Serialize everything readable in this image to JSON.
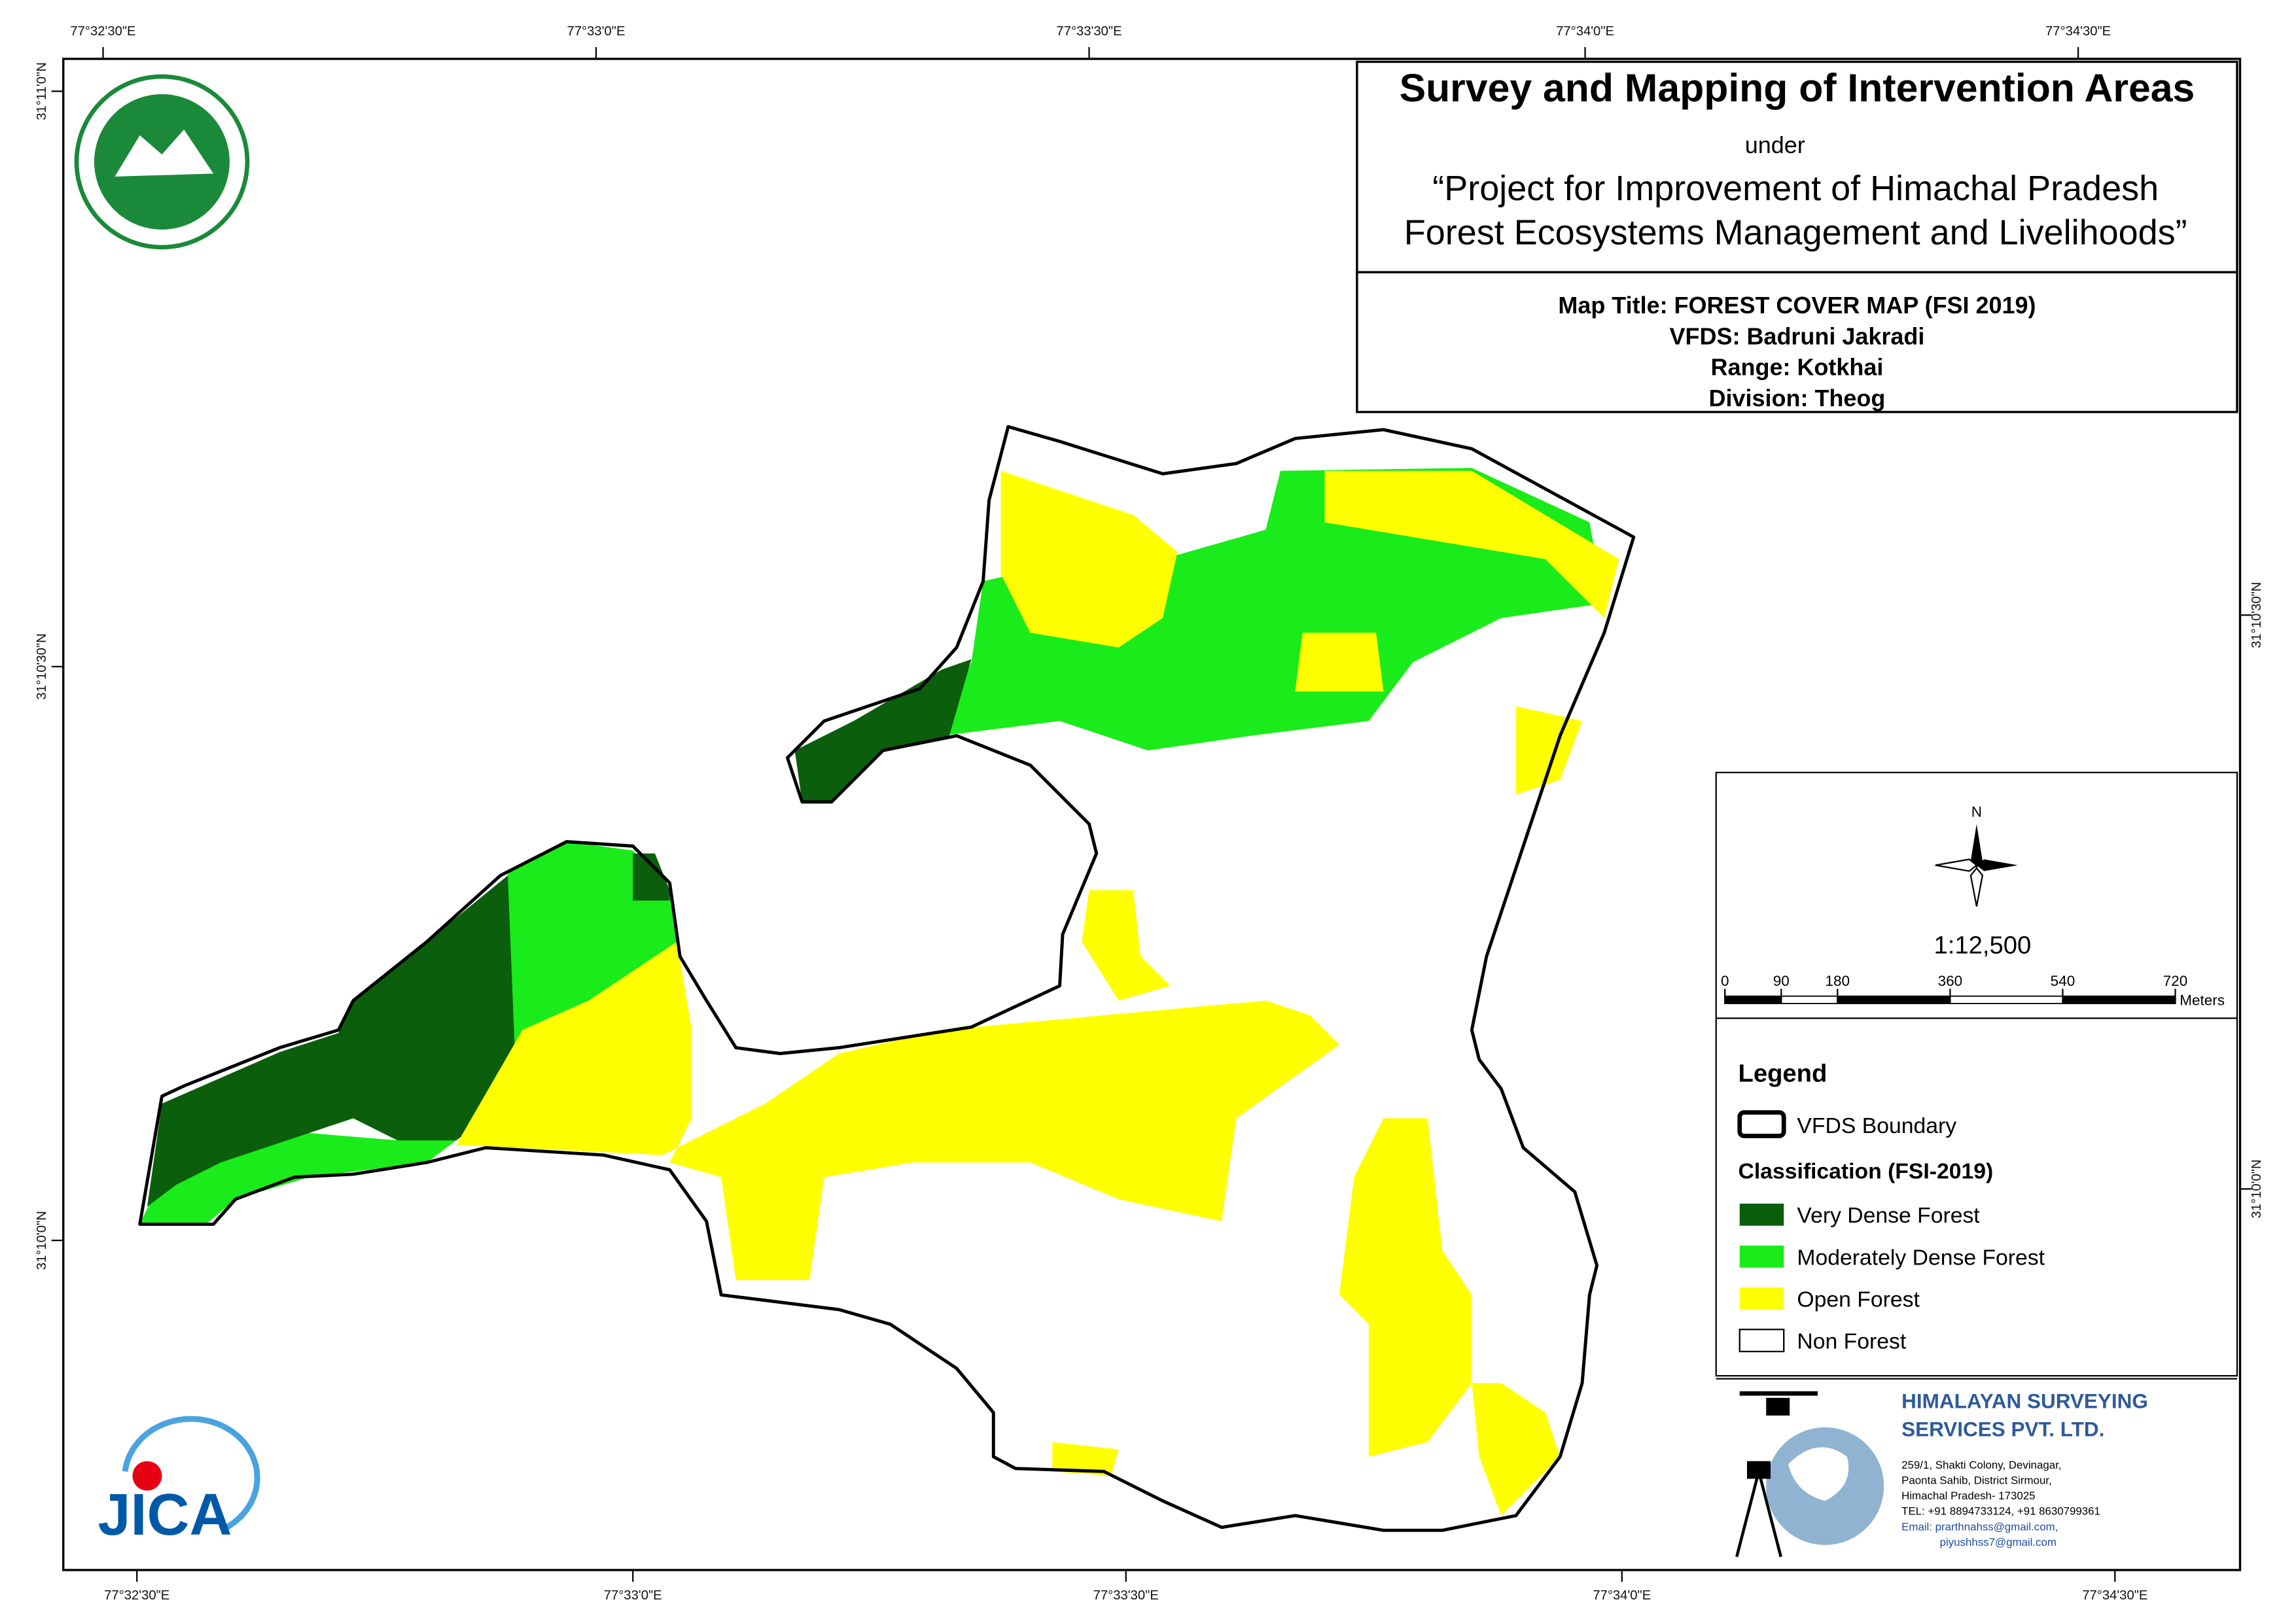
{
  "header": {
    "title": "Survey and Mapping of Intervention Areas",
    "under": "under",
    "project_line1": "“Project for Improvement of Himachal Pradesh",
    "project_line2": "Forest Ecosystems Management and Livelihoods”"
  },
  "map_info": [
    "Map Title: FOREST COVER MAP (FSI 2019)",
    "VFDS: Badruni Jakradi",
    "Range: Kotkhai",
    "Division: Theog"
  ],
  "grid_labels": {
    "top": [
      "77°32'30\"E",
      "77°33'0\"E",
      "77°33'30\"E",
      "77°34'0\"E",
      "77°34'30\"E"
    ],
    "bottom": [
      "77°32'30\"E",
      "77°33'0\"E",
      "77°33'30\"E",
      "77°34'0\"E",
      "77°34'30\"E"
    ],
    "left": [
      "31°11'0\"N",
      "31°10'30\"N",
      "31°10'0\"N"
    ],
    "right": [
      "31°10'30\"N",
      "31°10'0\"N"
    ]
  },
  "north": "N",
  "scale": {
    "ratio": "1:12,500",
    "ticks": [
      0,
      90,
      180,
      360,
      540,
      720
    ],
    "unit": "Meters"
  },
  "legend": {
    "title": "Legend",
    "boundary": "VFDS Boundary",
    "classification_title": "Classification (FSI-2019)",
    "classes": [
      {
        "name": "Very Dense Forest",
        "color": "#0b5e0b"
      },
      {
        "name": "Moderately Dense Forest",
        "color": "#1aeb1a"
      },
      {
        "name": "Open Forest",
        "color": "#ffff00"
      },
      {
        "name": "Non Forest",
        "color": "#ffffff"
      }
    ]
  },
  "company": {
    "name_line1": "HIMALAYAN SURVEYING",
    "name_line2": "SERVICES PVT. LTD.",
    "address": [
      "259/1, Shakti Colony, Devinagar,",
      "Paonta Sahib, District Sirmour,",
      "Himachal Pradesh- 173025",
      "TEL: +91 8894733124, +91 8630799361",
      "Email: prarthnahss@gmail.com,",
      "piyushhss7@gmail.com"
    ]
  },
  "jica": "JICA"
}
